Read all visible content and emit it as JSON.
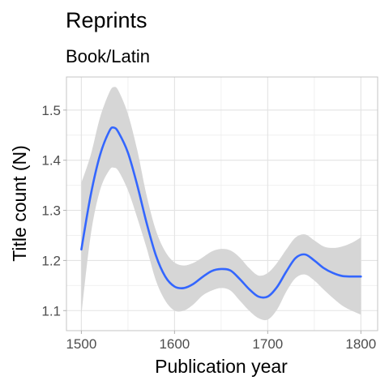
{
  "chart_data": {
    "type": "line",
    "title": "Reprints",
    "subtitle": "Book/Latin",
    "xlabel": "Publication year",
    "ylabel": "Title count (N)",
    "xlim": [
      1484,
      1818
    ],
    "ylim": [
      1.06,
      1.566
    ],
    "x_ticks": [
      1500,
      1600,
      1700,
      1800
    ],
    "y_ticks": [
      1.1,
      1.2,
      1.3,
      1.4,
      1.5
    ],
    "x_tick_labels": [
      "1500",
      "1600",
      "1700",
      "1800"
    ],
    "y_tick_labels": [
      "1.1",
      "1.2",
      "1.3",
      "1.4",
      "1.5"
    ],
    "grid": true,
    "series": [
      {
        "color": "#3366ff",
        "band_color": "#d6d6d6",
        "x": [
          1500,
          1510,
          1520,
          1530,
          1535,
          1540,
          1550,
          1560,
          1570,
          1580,
          1590,
          1600,
          1610,
          1620,
          1630,
          1640,
          1650,
          1660,
          1670,
          1680,
          1690,
          1700,
          1710,
          1720,
          1730,
          1740,
          1750,
          1760,
          1770,
          1780,
          1790,
          1800
        ],
        "y": [
          1.222,
          1.33,
          1.41,
          1.458,
          1.465,
          1.455,
          1.415,
          1.35,
          1.275,
          1.21,
          1.168,
          1.148,
          1.145,
          1.153,
          1.167,
          1.179,
          1.183,
          1.18,
          1.163,
          1.143,
          1.128,
          1.128,
          1.147,
          1.178,
          1.205,
          1.212,
          1.2,
          1.185,
          1.175,
          1.169,
          1.168,
          1.168
        ],
        "lower": [
          1.092,
          1.25,
          1.34,
          1.38,
          1.385,
          1.378,
          1.34,
          1.285,
          1.225,
          1.16,
          1.12,
          1.1,
          1.1,
          1.112,
          1.13,
          1.14,
          1.145,
          1.14,
          1.12,
          1.1,
          1.085,
          1.082,
          1.102,
          1.138,
          1.165,
          1.172,
          1.16,
          1.142,
          1.125,
          1.11,
          1.1,
          1.092
        ],
        "upper": [
          1.355,
          1.41,
          1.485,
          1.535,
          1.546,
          1.538,
          1.492,
          1.42,
          1.33,
          1.26,
          1.218,
          1.196,
          1.19,
          1.195,
          1.206,
          1.218,
          1.223,
          1.22,
          1.206,
          1.185,
          1.17,
          1.175,
          1.195,
          1.222,
          1.246,
          1.252,
          1.24,
          1.228,
          1.225,
          1.228,
          1.235,
          1.246
        ]
      }
    ]
  }
}
